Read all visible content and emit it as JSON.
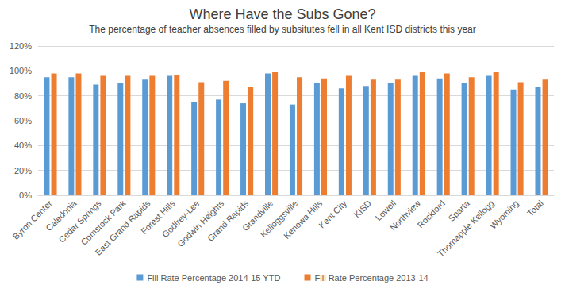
{
  "chart_data": {
    "type": "bar",
    "title": "Where Have the Subs Gone?",
    "subtitle": "The percentage of teacher absences filled by subsitutes fell in all Kent ISD districts this year",
    "categories": [
      "Byron Center",
      "Caledonia",
      "Cedar Springs",
      "Comstock Park",
      "East Grand Rapids",
      "Forest Hills",
      "Godfrey-Lee",
      "Godwin Heights",
      "Grand Rapids",
      "Grandville",
      "Kelloggsville",
      "Kenowa Hills",
      "Kent City",
      "KISD",
      "Lowell",
      "Northview",
      "Rockford",
      "Sparta",
      "Thornapple Kellogg",
      "Wyoming",
      "Total"
    ],
    "series": [
      {
        "name": "Fill Rate Percentage 2014-15 YTD",
        "color": "#5b9bd5",
        "values": [
          95,
          95,
          89,
          90,
          93,
          96,
          75,
          77,
          74,
          98,
          73,
          90,
          86,
          88,
          90,
          96,
          94,
          90,
          96,
          85,
          87
        ]
      },
      {
        "name": "Fill Rate Percentage 2013-14",
        "color": "#ed7d31",
        "values": [
          98,
          98,
          96,
          96,
          96,
          97,
          91,
          92,
          87,
          99,
          95,
          94,
          96,
          93,
          93,
          99,
          98,
          95,
          99,
          91,
          93
        ]
      }
    ],
    "ylim": [
      0,
      120
    ],
    "yticks": [
      {
        "value": 0,
        "label": "0%"
      },
      {
        "value": 20,
        "label": "20%"
      },
      {
        "value": 40,
        "label": "40%"
      },
      {
        "value": 60,
        "label": "60%"
      },
      {
        "value": 80,
        "label": "80%"
      },
      {
        "value": 100,
        "label": "100%"
      },
      {
        "value": 120,
        "label": "120%"
      }
    ],
    "grid": true,
    "legend": "bottom"
  }
}
